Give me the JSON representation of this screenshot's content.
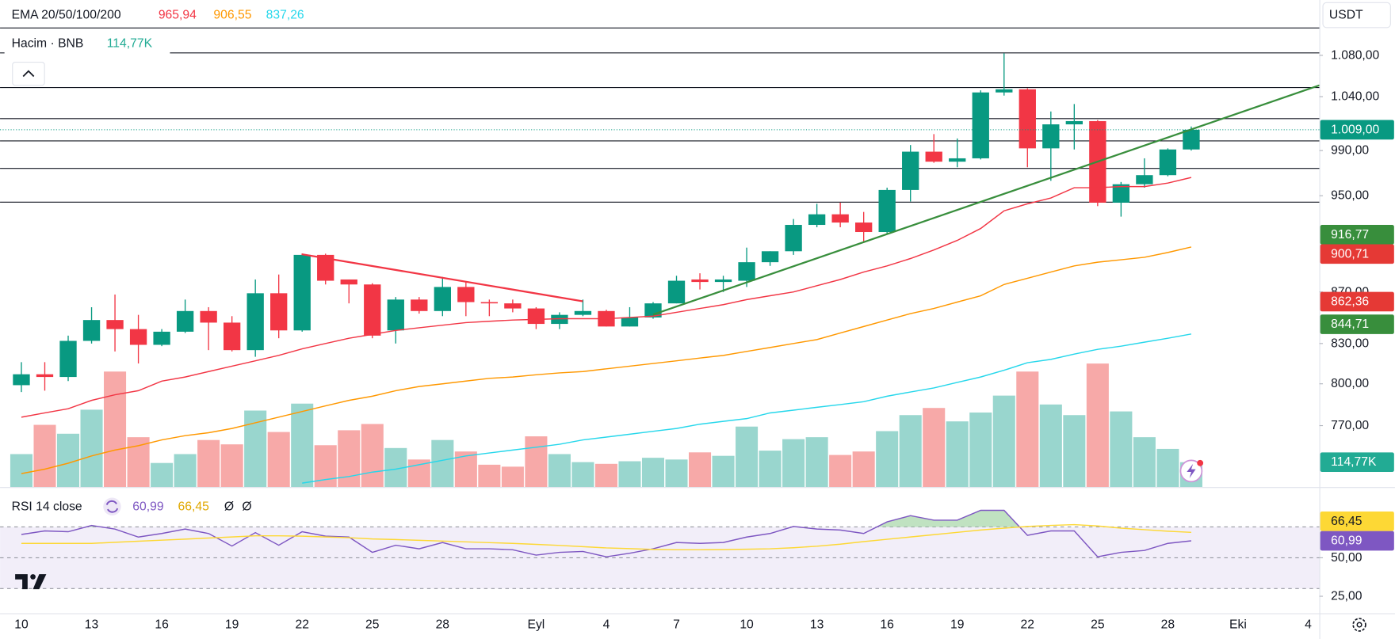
{
  "header": {
    "currency": "USDT"
  },
  "chart_data": [
    {
      "type": "candlestick",
      "legend_title": "EMA 20/50/100/200",
      "categories": [
        "10",
        null,
        null,
        "13",
        null,
        null,
        "16",
        null,
        null,
        "19",
        null,
        null,
        "22",
        null,
        null,
        "25",
        null,
        null,
        "28",
        null,
        null,
        null,
        "Eyl",
        null,
        null,
        "4",
        null,
        null,
        "7",
        null,
        null,
        "10",
        null,
        null,
        "13",
        null,
        null,
        "16",
        null,
        null,
        "19",
        null,
        null,
        "22",
        null,
        null,
        "25",
        null,
        null,
        "28",
        null,
        null,
        "Eki",
        null,
        null,
        "4"
      ],
      "open": [
        799,
        807,
        805,
        832,
        848,
        841,
        829,
        839,
        855,
        846,
        825,
        869,
        840,
        900,
        880,
        876,
        840,
        864,
        855,
        874,
        862,
        861,
        857,
        845,
        852,
        855,
        843,
        850,
        861,
        880,
        878,
        879,
        894,
        903,
        925,
        934,
        927,
        919,
        955,
        989,
        980,
        983,
        1044,
        1047,
        992,
        1014,
        1017,
        944,
        960,
        968,
        991,
        null,
        null,
        null,
        null,
        null
      ],
      "high": [
        816,
        816,
        836,
        858,
        868,
        852,
        841,
        864,
        858,
        851,
        880,
        884,
        901,
        901,
        880,
        877,
        866,
        866,
        882,
        878,
        864,
        864,
        858,
        854,
        864,
        856,
        858,
        862,
        883,
        885,
        883,
        906,
        903,
        930,
        943,
        944,
        936,
        957,
        995,
        1005,
        1001,
        1046,
        1082,
        1048,
        1026,
        1033,
        1018,
        962,
        983,
        992,
        1012,
        null,
        null,
        null,
        null,
        null
      ],
      "low": [
        794,
        795,
        802,
        830,
        824,
        815,
        828,
        838,
        825,
        824,
        820,
        834,
        839,
        876,
        861,
        834,
        830,
        853,
        851,
        851,
        851,
        854,
        841,
        841,
        851,
        843,
        843,
        849,
        861,
        872,
        870,
        874,
        891,
        900,
        923,
        923,
        910,
        917,
        945,
        979,
        975,
        982,
        1041,
        975,
        963,
        991,
        941,
        932,
        957,
        967,
        990,
        null,
        null,
        null,
        null,
        null
      ],
      "close": [
        807,
        805,
        832,
        848,
        841,
        829,
        839,
        855,
        846,
        825,
        869,
        840,
        900,
        879,
        876,
        836,
        864,
        855,
        874,
        862,
        861,
        857,
        845,
        852,
        855,
        843,
        850,
        861,
        879,
        878,
        880,
        894,
        903,
        925,
        934,
        927,
        919,
        955,
        989,
        980,
        983,
        1044,
        1047,
        992,
        1014,
        1017,
        944,
        960,
        968,
        991,
        1009,
        null,
        null,
        null,
        null,
        null
      ],
      "up_color": "#089981",
      "down_color": "#f23645",
      "ylim": [
        728,
        1136
      ],
      "log_scale": true,
      "yticks": [
        {
          "value": 1080,
          "label": "1.080,00"
        },
        {
          "value": 1040,
          "label": "1.040,00"
        },
        {
          "value": 990,
          "label": "990,00"
        },
        {
          "value": 950,
          "label": "950,00"
        },
        {
          "value": 870,
          "label": "870,00"
        },
        {
          "value": 830,
          "label": "830,00"
        },
        {
          "value": 800,
          "label": "800,00"
        },
        {
          "value": 770,
          "label": "770,00"
        }
      ],
      "series": [
        {
          "color": "#f23645",
          "last_label": "965,94",
          "values": [
            776,
            779,
            782,
            788,
            792,
            795,
            802,
            805,
            809,
            813,
            817,
            821,
            826,
            830,
            834,
            837,
            840,
            842,
            844,
            846,
            847,
            848,
            848.5,
            849,
            849,
            849,
            850,
            851,
            854,
            857,
            860,
            864,
            867,
            870,
            875,
            880,
            886,
            891,
            897,
            904,
            912,
            922,
            937,
            943,
            948,
            957,
            957,
            958,
            958,
            961,
            965.94,
            null,
            null,
            null,
            null,
            null
          ]
        },
        {
          "color": "#ff9800",
          "last_label": "906,55",
          "values": [
            737,
            740,
            744,
            749,
            753,
            756,
            760,
            763,
            765,
            768,
            772,
            776,
            780,
            784,
            788,
            791,
            795,
            798,
            800,
            802,
            804,
            805,
            806.6,
            808,
            809,
            811,
            813,
            815,
            817,
            819,
            821,
            824,
            827,
            830,
            833,
            838,
            843,
            848,
            853,
            857,
            862,
            867,
            876,
            881,
            886,
            891,
            894,
            896,
            898,
            902,
            906.55,
            null,
            null,
            null,
            null,
            null
          ]
        },
        {
          "color": "#26d7eb",
          "last_label": "837,26",
          "values": [
            null,
            null,
            null,
            null,
            null,
            null,
            null,
            null,
            null,
            null,
            null,
            null,
            730.6,
            733,
            735,
            738,
            740,
            743,
            746,
            749,
            751,
            753,
            755,
            757,
            760,
            762,
            764,
            766,
            768,
            771,
            773,
            775,
            779,
            781,
            783,
            785,
            787,
            791,
            794,
            797,
            801,
            805,
            810,
            815.6,
            818,
            822,
            825.6,
            828,
            831,
            834,
            837.26,
            null,
            null,
            null,
            null,
            null
          ]
        }
      ],
      "price_badges": [
        {
          "value": 1009,
          "label": "1.009,00",
          "color": "#089981",
          "line": true
        },
        {
          "value": 916.77,
          "label": "916,77",
          "color": "#388e3c"
        },
        {
          "value": 900.71,
          "label": "900,71",
          "color": "#e53935"
        },
        {
          "value": 862.36,
          "label": "862,36",
          "color": "#e53935"
        },
        {
          "value": 844.71,
          "label": "844,71",
          "color": "#388e3c"
        }
      ],
      "volume": {
        "title": "Hacim · BNB",
        "last_label": "114,77K",
        "badge_color": "#22ab94",
        "up_color": "#99d6ce",
        "down_color": "#f7a9a8",
        "ylim": [
          0,
          800
        ],
        "values": [
          152,
          287,
          246,
          357,
          533,
          230,
          111,
          152,
          217,
          197,
          353,
          254,
          385,
          193,
          262,
          291,
          180,
          127,
          217,
          164,
          103,
          94,
          234,
          152,
          115,
          107,
          119,
          135,
          127,
          160,
          144,
          279,
          168,
          221,
          230,
          148,
          164,
          258,
          332,
          365,
          303,
          344,
          422,
          533,
          381,
          332,
          570,
          349,
          230,
          176,
          114.77,
          null,
          null,
          null,
          null,
          null
        ]
      }
    },
    {
      "type": "line",
      "title": "RSI 14 close",
      "extra_labels": [
        "Ø",
        "Ø"
      ],
      "ylim": [
        14,
        93
      ],
      "yticks": [
        {
          "value": 50,
          "label": "50,00"
        },
        {
          "value": 25,
          "label": "25,00"
        }
      ],
      "levels": [
        30,
        50,
        70
      ],
      "band_color": "#7e57c2",
      "overbought_fill": "#a5d6a7",
      "series": [
        {
          "color": "#7e57c2",
          "last_label": "60,99",
          "values": [
            65.1,
            67.4,
            66.9,
            70.9,
            68.6,
            63.4,
            65.7,
            68.6,
            65.7,
            57.6,
            66.3,
            58.1,
            66.9,
            64.0,
            63.4,
            53.5,
            58.1,
            55.8,
            59.9,
            55.8,
            55.8,
            55.2,
            51.7,
            53.5,
            54.1,
            50.6,
            52.9,
            55.8,
            59.9,
            59.3,
            59.9,
            63.4,
            65.7,
            70.3,
            68.6,
            68.0,
            65.7,
            73.3,
            77.3,
            74.4,
            74.4,
            80.8,
            80.8,
            64.5,
            67.4,
            67.4,
            50.6,
            53.5,
            54.7,
            59.3,
            60.99,
            null,
            null,
            null,
            null,
            null
          ]
        },
        {
          "color": "#fdd835",
          "last_label": "66,45",
          "values": [
            59.3,
            59.3,
            59.3,
            59.3,
            60,
            60.7,
            61.4,
            62.1,
            62.8,
            63.5,
            64.2,
            64.2,
            64,
            63.5,
            63,
            62.2,
            61.8,
            61.3,
            60.8,
            60.3,
            59.8,
            59.3,
            58.7,
            58,
            57.2,
            56.4,
            55.9,
            55.4,
            55.2,
            55.2,
            55.3,
            55.5,
            55.8,
            56.5,
            57.5,
            58.8,
            60.5,
            62,
            63.5,
            65,
            66.5,
            68,
            69.2,
            70.3,
            71,
            71.5,
            70.6,
            69.2,
            68.2,
            67.2,
            66.45,
            null,
            null,
            null,
            null,
            null
          ]
        }
      ]
    }
  ]
}
